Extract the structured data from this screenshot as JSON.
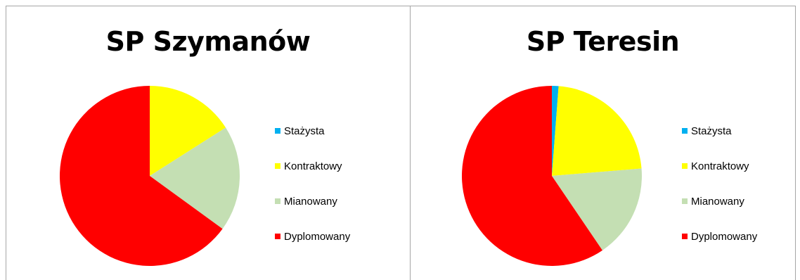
{
  "chart_data": [
    {
      "type": "pie",
      "title": "SP Szymanów",
      "categories": [
        "Stażysta",
        "Kontraktowy",
        "Mianowany",
        "Dyplomowany"
      ],
      "values": [
        0,
        16,
        19,
        65
      ],
      "colors": [
        "#00b0f0",
        "#ffff00",
        "#c4dfb3",
        "#ff0000"
      ],
      "legend": "right"
    },
    {
      "type": "pie",
      "title": "SP Teresin",
      "categories": [
        "Stażysta",
        "Kontraktowy",
        "Mianowany",
        "Dyplomowany"
      ],
      "values": [
        1.2,
        22.5,
        16.8,
        59.5
      ],
      "colors": [
        "#00b0f0",
        "#ffff00",
        "#c4dfb3",
        "#ff0000"
      ],
      "legend": "right"
    }
  ]
}
